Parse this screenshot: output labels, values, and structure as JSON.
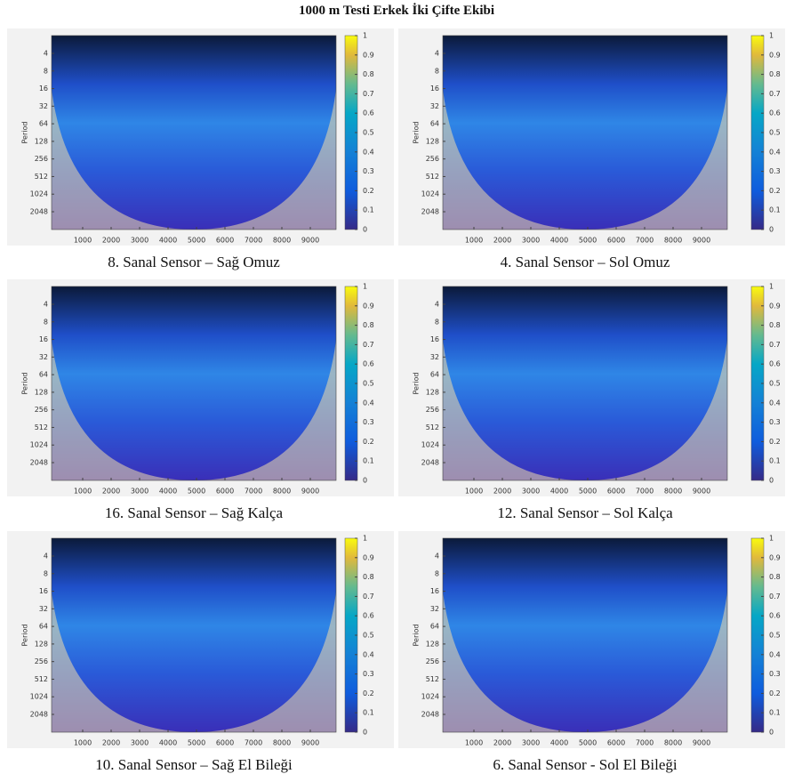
{
  "title": "1000 m Testi Erkek İki Çifte Ekibi",
  "period_label": "Period",
  "yticks": [
    4,
    8,
    16,
    32,
    64,
    128,
    256,
    512,
    1024,
    2048
  ],
  "xticks": [
    1000,
    2000,
    3000,
    4000,
    5000,
    6000,
    7000,
    8000,
    9000
  ],
  "colorbar_ticks": [
    0,
    0.1,
    0.2,
    0.3,
    0.4,
    0.5,
    0.6,
    0.7,
    0.8,
    0.9,
    1
  ],
  "panels": [
    {
      "caption": "8. Sanal Sensor – Sağ Omuz"
    },
    {
      "caption": "4. Sanal Sensor – Sol Omuz"
    },
    {
      "caption": "16. Sanal Sensor – Sağ Kalça"
    },
    {
      "caption": "12. Sanal Sensor – Sol Kalça"
    },
    {
      "caption": "10. Sanal Sensor – Sağ El Bileği"
    },
    {
      "caption": "6. Sanal Sensor - Sol El Bileği"
    }
  ]
}
